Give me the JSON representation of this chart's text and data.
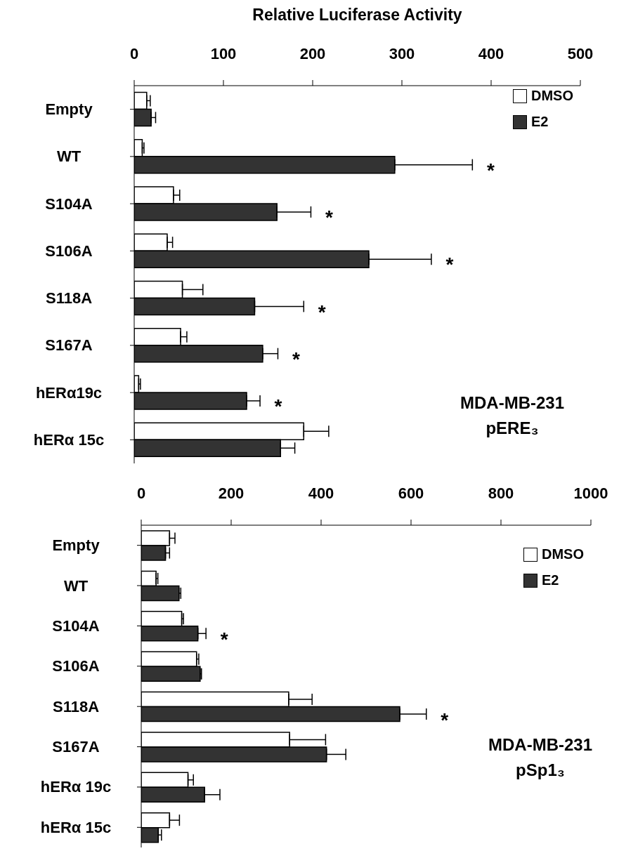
{
  "chart_data": [
    {
      "type": "bar",
      "orientation": "horizontal",
      "xlabel": "Relative Luciferase Activity",
      "categories": [
        "Empty",
        "WT",
        "S104A",
        "S106A",
        "S118A",
        "S167A",
        "hERα19c",
        "hERα 15c"
      ],
      "series": [
        {
          "name": "DMSO",
          "color": "#ffffff",
          "values": [
            14,
            9,
            44,
            37,
            54,
            52,
            5,
            190
          ],
          "errors": [
            4,
            2,
            7,
            6,
            23,
            7,
            2,
            28
          ]
        },
        {
          "name": "E2",
          "color": "#333333",
          "values": [
            19,
            292,
            160,
            263,
            135,
            144,
            126,
            164
          ],
          "errors": [
            5,
            87,
            38,
            70,
            55,
            17,
            15,
            16
          ]
        }
      ],
      "xlim": [
        0,
        500
      ],
      "xticks": [
        0,
        100,
        200,
        300,
        400,
        500
      ],
      "legend": "top right",
      "annotations": [
        {
          "text": "*",
          "x": 379,
          "y": "WT"
        },
        {
          "text": "*",
          "x": 198,
          "y": "S104A"
        },
        {
          "text": "*",
          "x": 333,
          "y": "S106A"
        },
        {
          "text": "*",
          "x": 190,
          "y": "S118A"
        },
        {
          "text": "*",
          "x": 161,
          "y": "S167A"
        },
        {
          "text": "*",
          "x": 141,
          "y": "hERα19c"
        },
        "MDA-MB-231",
        "pERE₃"
      ]
    },
    {
      "type": "bar",
      "orientation": "horizontal",
      "categories": [
        "Empty",
        "WT",
        "S104A",
        "S106A",
        "S118A",
        "S167A",
        "hERα 19c",
        "hERα 15c"
      ],
      "series": [
        {
          "name": "DMSO",
          "color": "#ffffff",
          "values": [
            63,
            33,
            90,
            123,
            328,
            330,
            104,
            63
          ],
          "errors": [
            12,
            4,
            4,
            5,
            52,
            80,
            12,
            22
          ]
        },
        {
          "name": "E2",
          "color": "#333333",
          "values": [
            54,
            84,
            126,
            131,
            575,
            412,
            141,
            38
          ],
          "errors": [
            9,
            4,
            18,
            3,
            59,
            43,
            34,
            7
          ]
        }
      ],
      "xlim": [
        0,
        1000
      ],
      "xticks": [
        0,
        200,
        400,
        600,
        800,
        1000
      ],
      "legend": "top right",
      "annotations": [
        {
          "text": "*",
          "x": 144,
          "y": "S104A"
        },
        {
          "text": "*",
          "x": 634,
          "y": "S118A"
        },
        "MDA-MB-231",
        "pSp1₃"
      ]
    }
  ]
}
